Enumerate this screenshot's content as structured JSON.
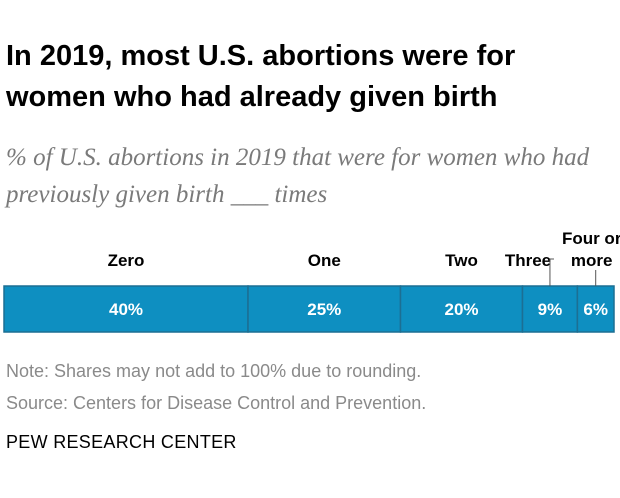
{
  "title": "In 2019, most U.S. abortions were for women who had already given birth",
  "subtitle": "% of U.S. abortions in 2019 that were for women who had previously given birth ___ times",
  "note": "Note: Shares may not add to 100% due to rounding.",
  "source": "Source: Centers for Disease Control and Prevention.",
  "organization": "PEW RESEARCH CENTER",
  "colors": {
    "bar": "#0e8fc1",
    "bar_border": "#1c6f93",
    "label": "#ffffff",
    "category": "#000000"
  },
  "chart_data": {
    "type": "bar",
    "orientation": "horizontal-stacked-100",
    "categories": [
      "Zero",
      "One",
      "Two",
      "Three",
      "Four or more"
    ],
    "values": [
      40,
      25,
      20,
      9,
      6
    ],
    "value_labels": [
      "40%",
      "25%",
      "20%",
      "9%",
      "6%"
    ],
    "category_label_lines": [
      [
        "Zero"
      ],
      [
        "One"
      ],
      [
        "Two"
      ],
      [
        "Three"
      ],
      [
        "Four or",
        "more"
      ]
    ],
    "xlim": [
      0,
      100
    ],
    "unit": "%",
    "grid": false,
    "legend": "none"
  }
}
